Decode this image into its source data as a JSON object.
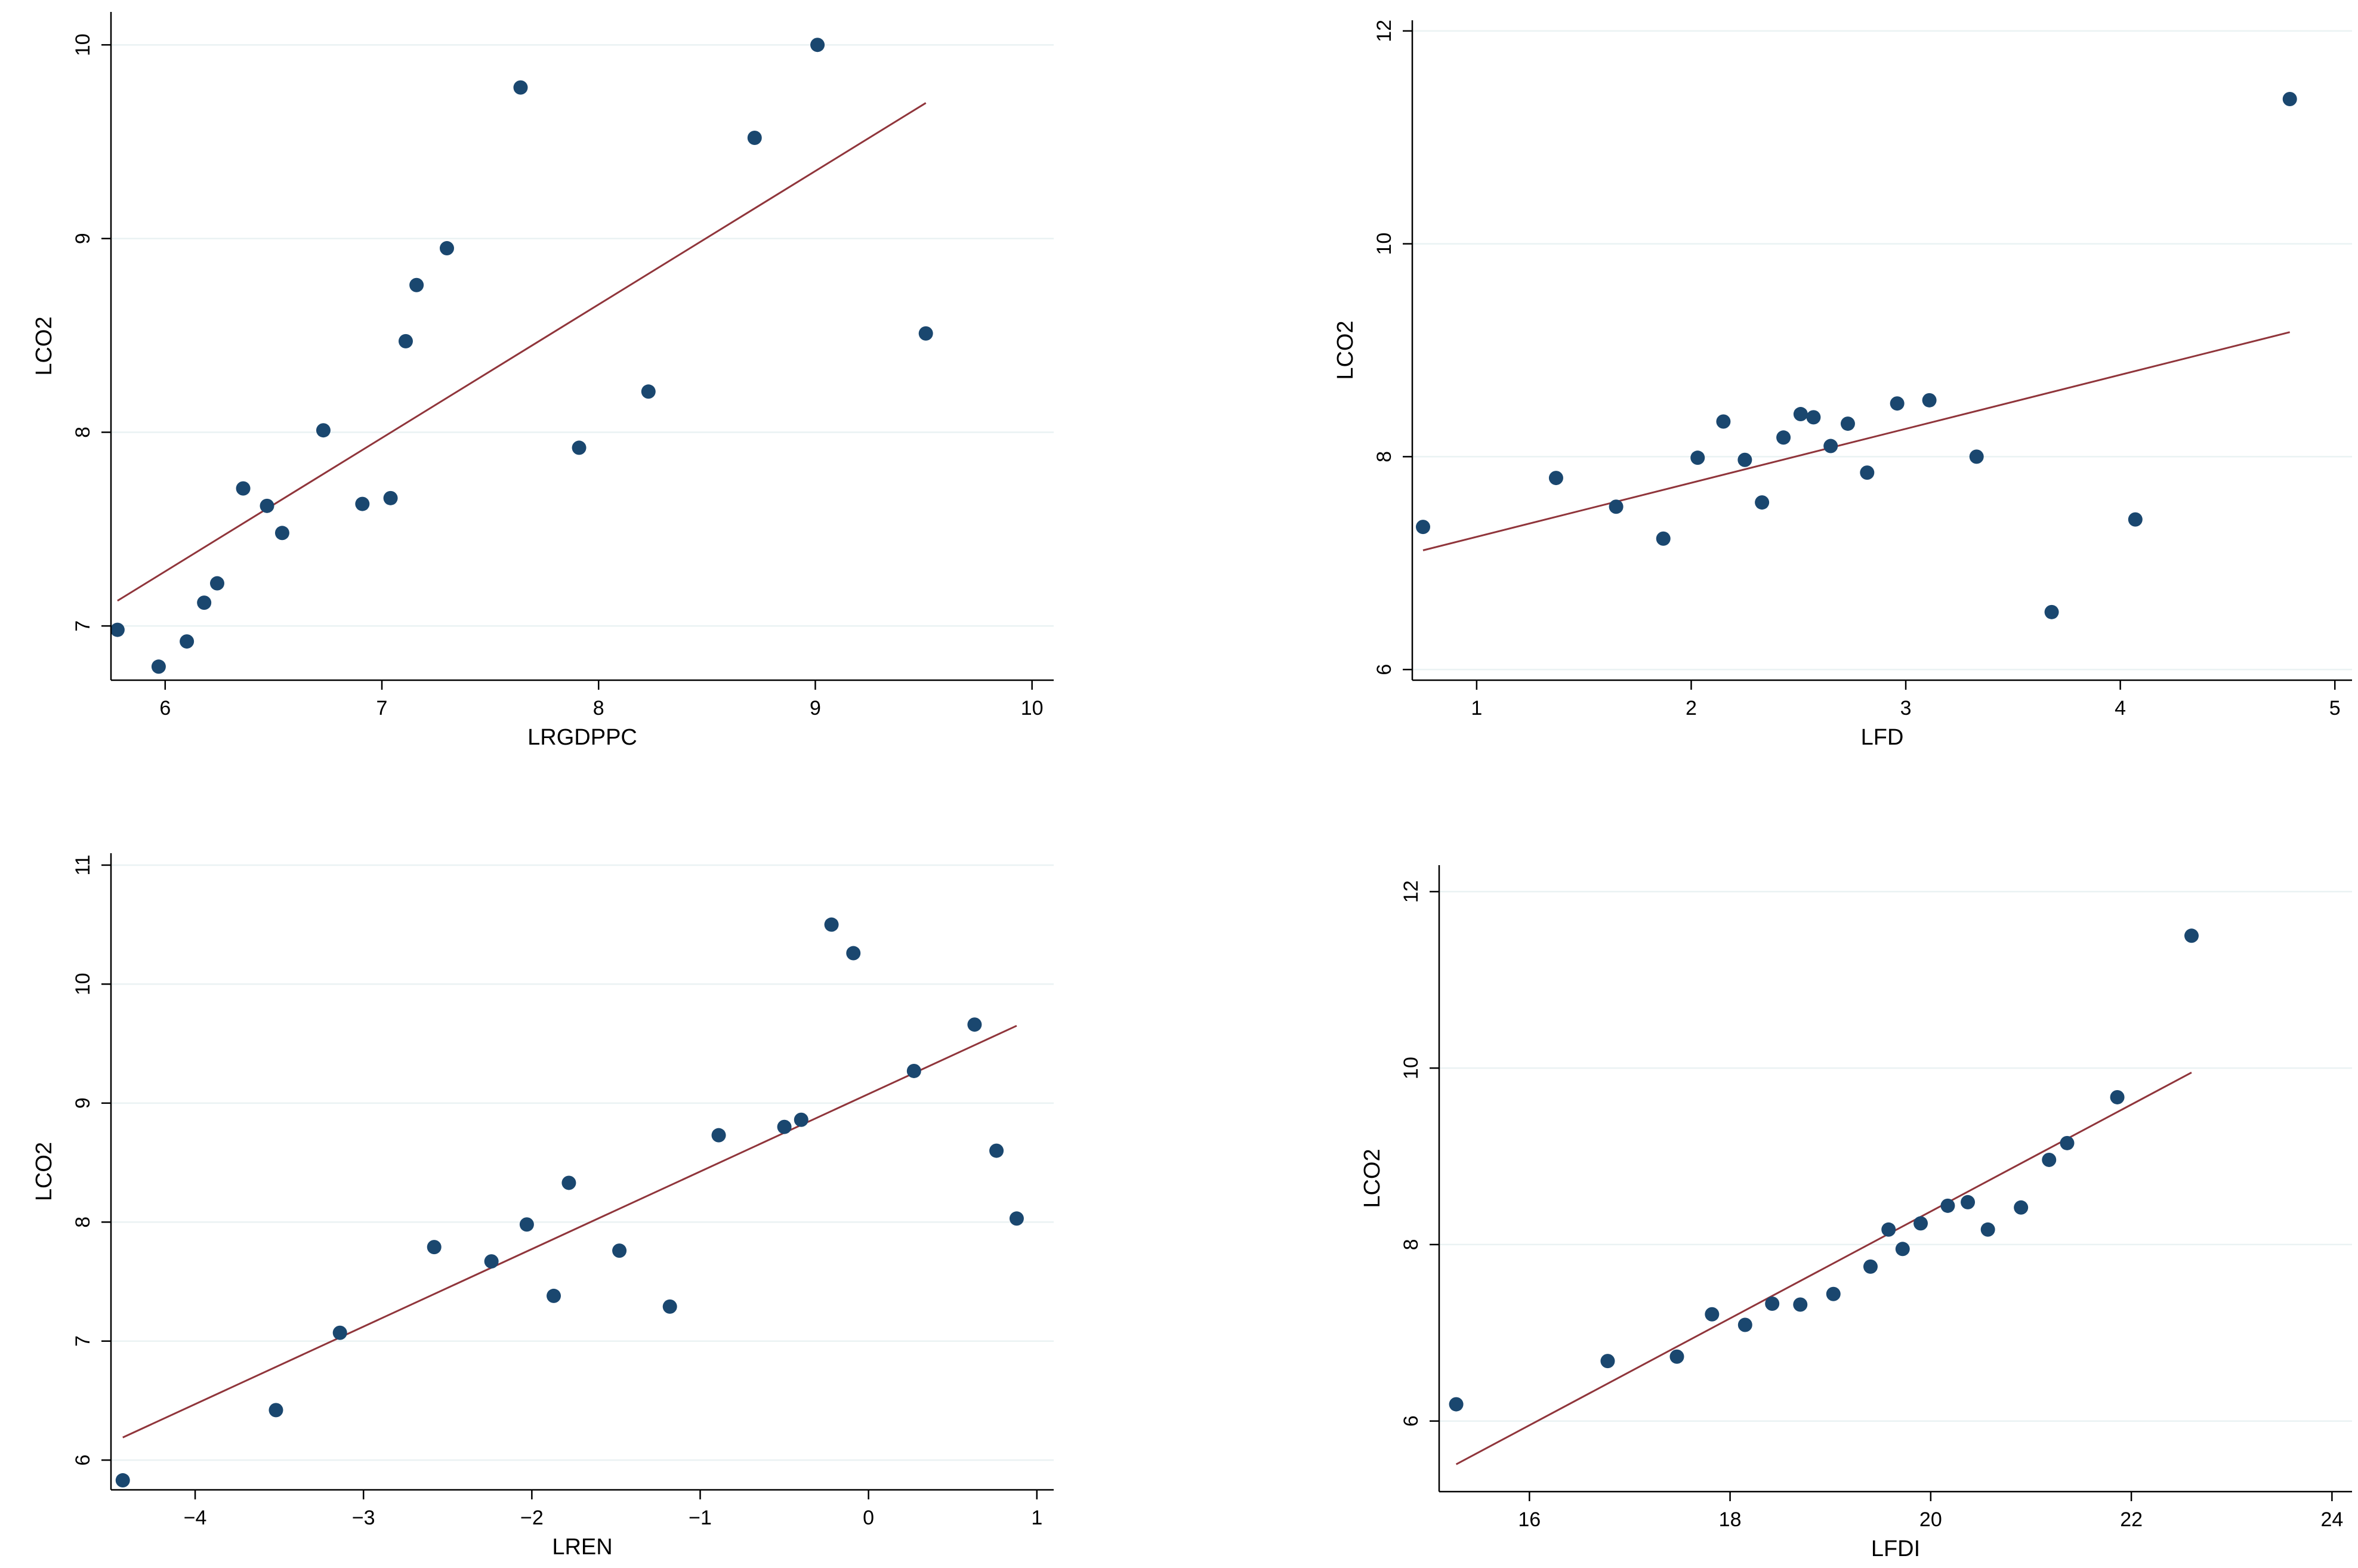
{
  "chart_data": [
    {
      "type": "scatter",
      "xlabel": "LRGDPPC",
      "ylabel": "LCO2",
      "xlim": [
        5.75,
        10.1
      ],
      "ylim": [
        6.72,
        10.17
      ],
      "xticks": [
        6,
        7,
        8,
        9,
        10
      ],
      "yticks": [
        7,
        8,
        9,
        10
      ],
      "grid": true,
      "points": [
        [
          5.78,
          6.98
        ],
        [
          5.97,
          6.79
        ],
        [
          6.1,
          6.92
        ],
        [
          6.18,
          7.12
        ],
        [
          6.24,
          7.22
        ],
        [
          6.36,
          7.71
        ],
        [
          6.47,
          7.62
        ],
        [
          6.54,
          7.48
        ],
        [
          6.73,
          8.01
        ],
        [
          6.91,
          7.63
        ],
        [
          7.04,
          7.66
        ],
        [
          7.11,
          8.47
        ],
        [
          7.16,
          8.76
        ],
        [
          7.3,
          8.95
        ],
        [
          7.64,
          9.78
        ],
        [
          7.91,
          7.92
        ],
        [
          8.23,
          8.21
        ],
        [
          8.72,
          9.52
        ],
        [
          9.01,
          10.0
        ],
        [
          9.51,
          8.51
        ]
      ],
      "fit_line": {
        "x": [
          5.78,
          9.51
        ],
        "y": [
          7.13,
          9.7
        ]
      }
    },
    {
      "type": "scatter",
      "xlabel": "LFD",
      "ylabel": "LCO2",
      "xlim": [
        0.7,
        5.08
      ],
      "ylim": [
        5.9,
        12.1
      ],
      "xticks": [
        1,
        2,
        3,
        4,
        5
      ],
      "yticks": [
        6,
        8,
        10,
        12
      ],
      "grid": true,
      "points": [
        [
          0.75,
          7.34
        ],
        [
          1.37,
          7.8
        ],
        [
          1.65,
          7.53
        ],
        [
          1.87,
          7.23
        ],
        [
          2.03,
          7.99
        ],
        [
          2.15,
          8.33
        ],
        [
          2.25,
          7.97
        ],
        [
          2.33,
          7.57
        ],
        [
          2.43,
          8.18
        ],
        [
          2.51,
          8.4
        ],
        [
          2.57,
          8.37
        ],
        [
          2.65,
          8.1
        ],
        [
          2.73,
          8.31
        ],
        [
          2.82,
          7.85
        ],
        [
          2.96,
          8.5
        ],
        [
          3.11,
          8.53
        ],
        [
          3.33,
          8.0
        ],
        [
          3.68,
          6.54
        ],
        [
          4.07,
          7.41
        ],
        [
          4.79,
          11.36
        ]
      ],
      "fit_line": {
        "x": [
          0.75,
          4.79
        ],
        "y": [
          7.12,
          9.17
        ]
      }
    },
    {
      "type": "scatter",
      "xlabel": "LREN",
      "ylabel": "LCO2",
      "xlim": [
        -4.5,
        1.1
      ],
      "ylim": [
        5.75,
        11.1
      ],
      "xticks": [
        -4,
        -3,
        -2,
        -1,
        0,
        1
      ],
      "yticks": [
        6,
        7,
        8,
        9,
        10,
        11
      ],
      "grid": true,
      "points": [
        [
          -4.43,
          5.83
        ],
        [
          -3.52,
          6.42
        ],
        [
          -3.14,
          7.07
        ],
        [
          -2.58,
          7.79
        ],
        [
          -2.24,
          7.67
        ],
        [
          -2.03,
          7.98
        ],
        [
          -1.87,
          7.38
        ],
        [
          -1.78,
          8.33
        ],
        [
          -1.48,
          7.76
        ],
        [
          -1.18,
          7.29
        ],
        [
          -0.89,
          8.73
        ],
        [
          -0.5,
          8.8
        ],
        [
          -0.4,
          8.86
        ],
        [
          -0.22,
          10.5
        ],
        [
          -0.09,
          10.26
        ],
        [
          0.27,
          9.27
        ],
        [
          0.63,
          9.66
        ],
        [
          0.76,
          8.6
        ],
        [
          0.88,
          8.03
        ]
      ],
      "fit_line": {
        "x": [
          -4.43,
          0.88
        ],
        "y": [
          6.19,
          9.65
        ]
      }
    },
    {
      "type": "scatter",
      "xlabel": "LFDI",
      "ylabel": "LCO2",
      "xlim": [
        15.1,
        24.2
      ],
      "ylim": [
        5.2,
        12.3
      ],
      "xticks": [
        16,
        18,
        20,
        22,
        24
      ],
      "yticks": [
        6,
        8,
        10,
        12
      ],
      "grid": true,
      "points": [
        [
          15.27,
          6.19
        ],
        [
          16.78,
          6.68
        ],
        [
          17.47,
          6.73
        ],
        [
          17.82,
          7.21
        ],
        [
          18.15,
          7.09
        ],
        [
          18.42,
          7.33
        ],
        [
          18.7,
          7.32
        ],
        [
          19.03,
          7.44
        ],
        [
          19.4,
          7.75
        ],
        [
          19.58,
          8.17
        ],
        [
          19.72,
          7.95
        ],
        [
          19.9,
          8.24
        ],
        [
          20.17,
          8.44
        ],
        [
          20.37,
          8.48
        ],
        [
          20.57,
          8.17
        ],
        [
          20.9,
          8.42
        ],
        [
          21.18,
          8.96
        ],
        [
          21.36,
          9.15
        ],
        [
          21.86,
          9.67
        ],
        [
          22.6,
          11.5
        ]
      ],
      "fit_line": {
        "x": [
          15.27,
          22.6
        ],
        "y": [
          5.51,
          9.95
        ]
      }
    }
  ]
}
